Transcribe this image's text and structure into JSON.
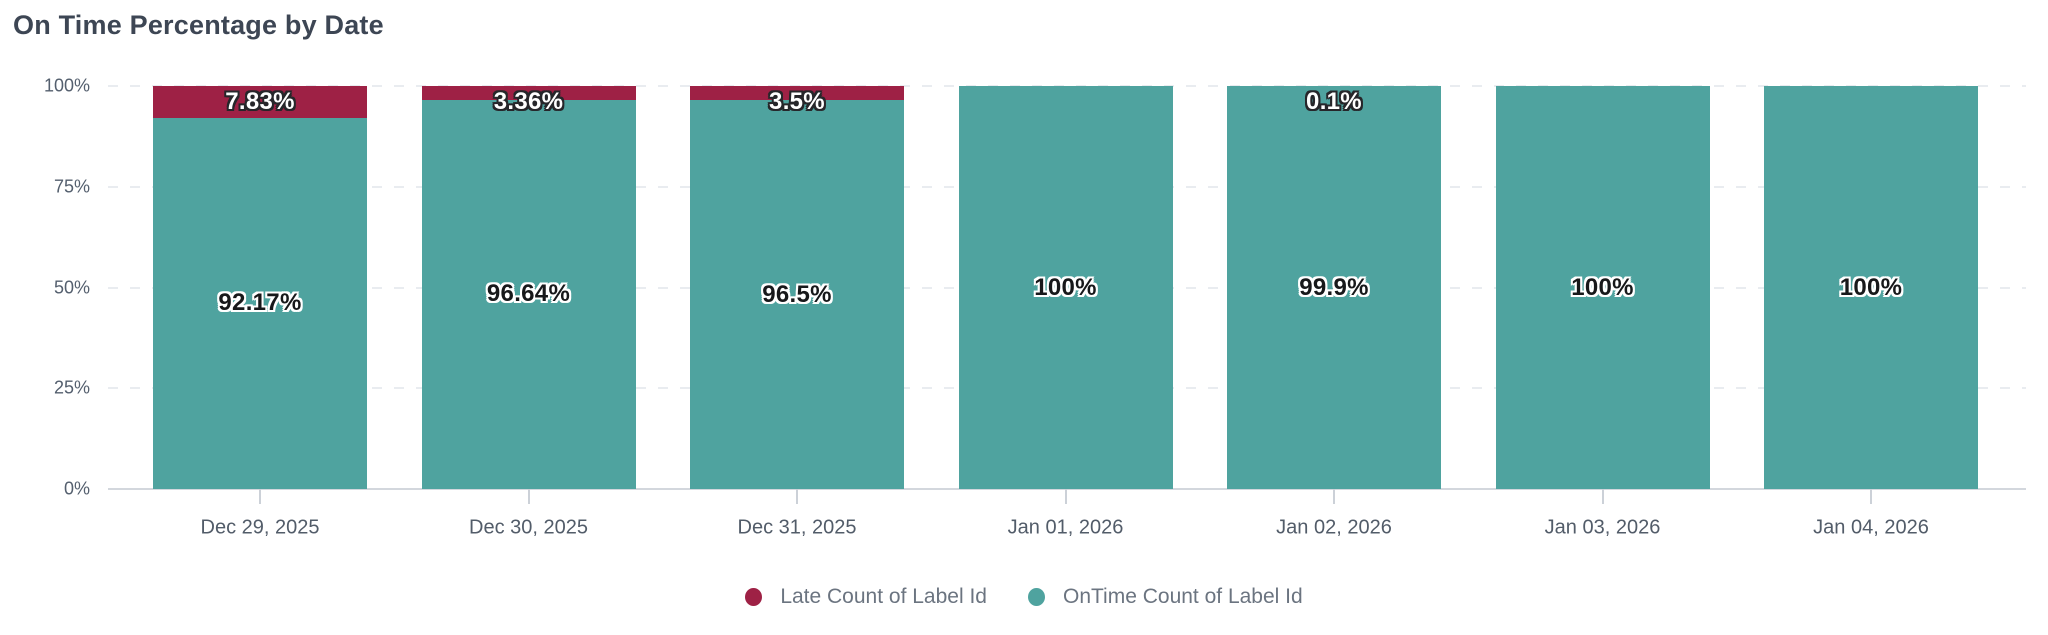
{
  "title": "On Time Percentage by Date",
  "palette": {
    "late": "#9e2145",
    "ontime": "#4fa39f",
    "title_text": "#3d4654",
    "axis_text": "#545f6e",
    "legend_text": "#6b7480",
    "gridline": "#e9ecf0",
    "axis_line": "#d3d7dd"
  },
  "chart_data": {
    "type": "bar",
    "stacked": true,
    "title": "On Time Percentage by Date",
    "categories": [
      "Dec 29, 2025",
      "Dec 30, 2025",
      "Dec 31, 2025",
      "Jan 01, 2026",
      "Jan 02, 2026",
      "Jan 03, 2026",
      "Jan 04, 2026"
    ],
    "series": [
      {
        "name": "Late Count of Label Id",
        "color": "#9e2145",
        "values": [
          7.83,
          3.36,
          3.5,
          0,
          0.1,
          0,
          0
        ],
        "labels": [
          "7.83%",
          "3.36%",
          "3.5%",
          "",
          "0.1%",
          "",
          ""
        ]
      },
      {
        "name": "OnTime Count of Label Id",
        "color": "#4fa39f",
        "values": [
          92.17,
          96.64,
          96.5,
          100,
          99.9,
          100,
          100
        ],
        "labels": [
          "92.17%",
          "96.64%",
          "96.5%",
          "100%",
          "99.9%",
          "100%",
          "100%"
        ]
      }
    ],
    "yticks": [
      {
        "value": 0,
        "label": "0%"
      },
      {
        "value": 25,
        "label": "25%"
      },
      {
        "value": 50,
        "label": "50%"
      },
      {
        "value": 75,
        "label": "75%"
      },
      {
        "value": 100,
        "label": "100%"
      }
    ],
    "ylim": [
      0,
      100
    ],
    "grid": "horizontal-dashed",
    "legend_position": "bottom-center"
  }
}
